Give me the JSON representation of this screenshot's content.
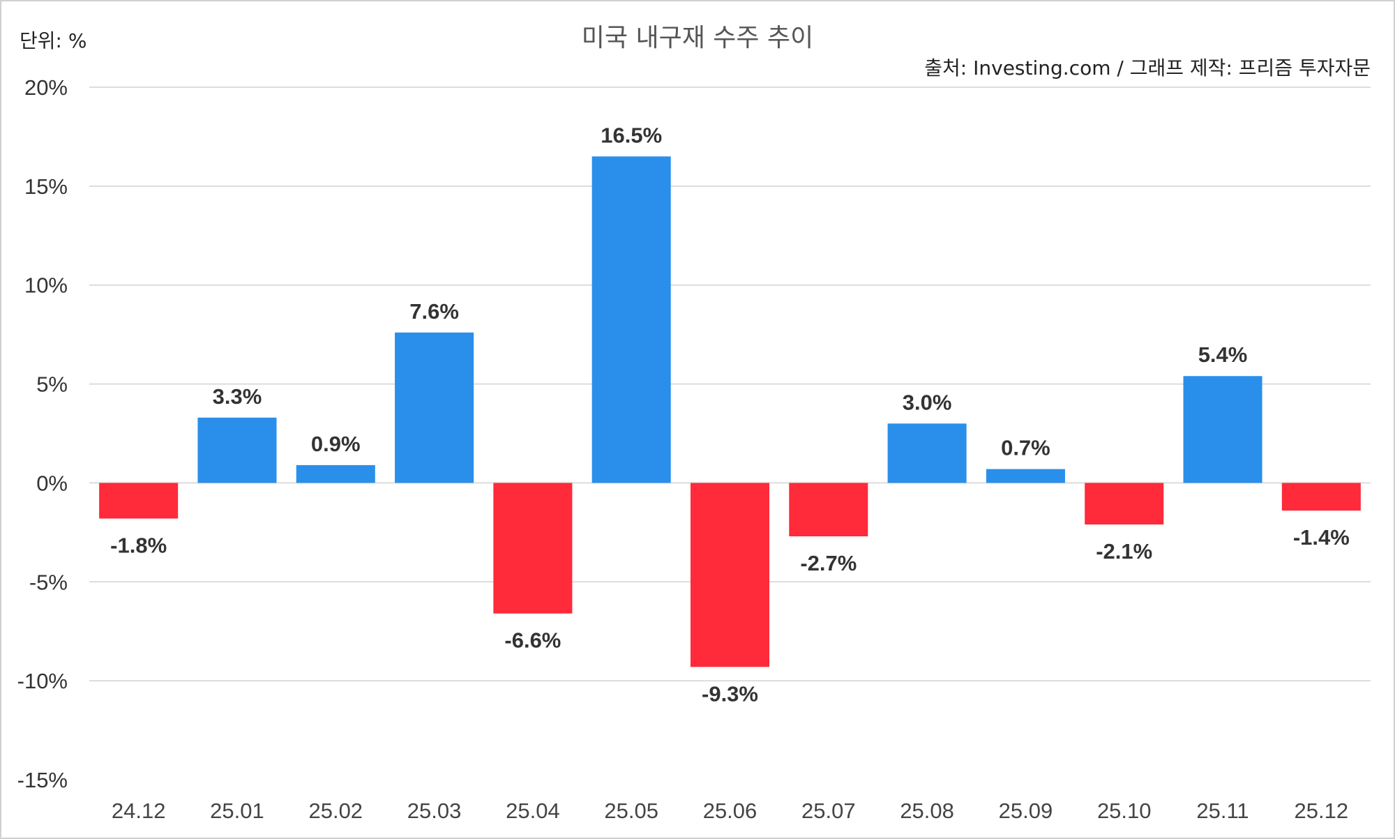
{
  "chart_data": {
    "type": "bar",
    "title": "미국 내구재 수주 추이",
    "unit_label": "단위: %",
    "source": "출처: Investing.com / 그래프 제작: 프리즘 투자자문",
    "xlabel": "",
    "ylabel": "",
    "ylim": [
      -15,
      20
    ],
    "yticks": [
      20,
      15,
      10,
      5,
      0,
      -5,
      -10,
      -15
    ],
    "ytick_labels": [
      "20%",
      "15%",
      "10%",
      "5%",
      "0%",
      "-5%",
      "-10%",
      "-15%"
    ],
    "grid": true,
    "legend": "none",
    "categories": [
      "24.12",
      "25.01",
      "25.02",
      "25.03",
      "25.04",
      "25.05",
      "25.06",
      "25.07",
      "25.08",
      "25.09",
      "25.10",
      "25.11",
      "25.12"
    ],
    "values": [
      -1.8,
      3.3,
      0.9,
      7.6,
      -6.6,
      16.5,
      -9.3,
      -2.7,
      3.0,
      0.7,
      -2.1,
      5.4,
      -1.4
    ],
    "data_labels": [
      "-1.8%",
      "3.3%",
      "0.9%",
      "7.6%",
      "-6.6%",
      "16.5%",
      "-9.3%",
      "-2.7%",
      "3.0%",
      "0.7%",
      "-2.1%",
      "5.4%",
      "-1.4%"
    ],
    "colors": {
      "positive": "#2A8FEA",
      "negative": "#FF2A3A",
      "grid": "#DCDCDC",
      "text": "#333333",
      "title": "#555555"
    }
  }
}
